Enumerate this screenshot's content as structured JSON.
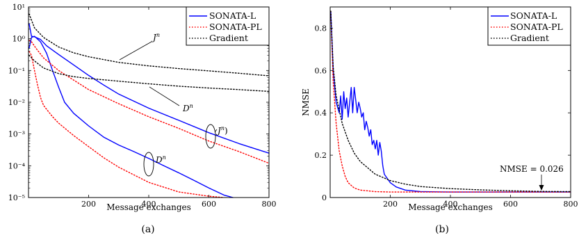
{
  "chart_data": [
    {
      "type": "line",
      "panel": "a",
      "caption": "(a)",
      "xlabel": "Message exchanges",
      "ylabel": "",
      "xlim": [
        0,
        800
      ],
      "ylim": [
        1e-05,
        10
      ],
      "yscale": "log",
      "grid": false,
      "legend_position": "top-right",
      "x_ticks": [
        200,
        400,
        600,
        800
      ],
      "x_tick_labels": [
        "200",
        "400",
        "600",
        "800"
      ],
      "y_ticks": [
        1e-05,
        0.0001,
        0.001,
        0.01,
        0.1,
        1,
        10
      ],
      "y_tick_labels": [
        "10⁻⁵",
        "10⁻⁴",
        "10⁻³",
        "10⁻²",
        "10⁻¹",
        "10⁰",
        "10¹"
      ],
      "series": [
        {
          "name": "SONATA-L",
          "color": "#0000ff",
          "style": "solid",
          "metric": "Jn",
          "x": [
            2,
            10,
            20,
            40,
            60,
            100,
            150,
            200,
            250,
            300,
            400,
            500,
            600,
            700,
            800
          ],
          "y": [
            3,
            1.2,
            1.15,
            0.95,
            0.6,
            0.32,
            0.15,
            0.07,
            0.035,
            0.018,
            0.0065,
            0.0027,
            0.0011,
            0.0005,
            0.00025
          ]
        },
        {
          "name": "SONATA-L",
          "color": "#0000ff",
          "style": "solid",
          "metric": "Dn",
          "x": [
            2,
            10,
            20,
            40,
            60,
            80,
            100,
            120,
            150,
            200,
            250,
            300,
            350,
            400,
            450,
            500,
            550,
            600,
            650,
            680
          ],
          "y": [
            0.5,
            1.1,
            1.2,
            0.8,
            0.35,
            0.1,
            0.03,
            0.01,
            0.0045,
            0.0018,
            0.0008,
            0.00045,
            0.00028,
            0.00017,
            0.0001,
            6e-05,
            3.5e-05,
            2e-05,
            1.2e-05,
            1e-05
          ]
        },
        {
          "name": "SONATA-PL",
          "color": "#ff0000",
          "style": "dotted",
          "metric": "Jn",
          "x": [
            2,
            10,
            25,
            50,
            100,
            150,
            200,
            300,
            400,
            500,
            600,
            700,
            800
          ],
          "y": [
            0.9,
            0.8,
            0.5,
            0.25,
            0.1,
            0.05,
            0.025,
            0.009,
            0.0035,
            0.0015,
            0.0006,
            0.00028,
            0.00012
          ]
        },
        {
          "name": "SONATA-PL",
          "color": "#ff0000",
          "style": "dotted",
          "metric": "Dn",
          "x": [
            2,
            10,
            20,
            30,
            40,
            50,
            60,
            80,
            100,
            150,
            200,
            250,
            300,
            400,
            500,
            600,
            650
          ],
          "y": [
            0.4,
            0.3,
            0.1,
            0.035,
            0.014,
            0.008,
            0.006,
            0.0035,
            0.0022,
            0.0009,
            0.0004,
            0.00018,
            9e-05,
            3e-05,
            1.5e-05,
            1.1e-05,
            1e-05
          ]
        },
        {
          "name": "Gradient",
          "color": "#000000",
          "style": "dotted",
          "metric": "Jn",
          "x": [
            2,
            20,
            50,
            100,
            150,
            200,
            300,
            400,
            500,
            600,
            700,
            800
          ],
          "y": [
            6,
            2.2,
            1.1,
            0.55,
            0.36,
            0.27,
            0.18,
            0.14,
            0.115,
            0.097,
            0.082,
            0.068
          ]
        },
        {
          "name": "Gradient",
          "color": "#000000",
          "style": "dotted",
          "metric": "Dn",
          "x": [
            2,
            20,
            50,
            100,
            150,
            200,
            300,
            400,
            500,
            600,
            700,
            800
          ],
          "y": [
            0.3,
            0.2,
            0.12,
            0.08,
            0.064,
            0.056,
            0.046,
            0.038,
            0.032,
            0.028,
            0.025,
            0.022
          ]
        }
      ],
      "legend": [
        {
          "label": "SONATA-L",
          "color": "#0000ff",
          "style": "solid"
        },
        {
          "label": "SONATA-PL",
          "color": "#ff0000",
          "style": "dotted"
        },
        {
          "label": "Gradient",
          "color": "#000000",
          "style": "dotted"
        }
      ],
      "annotations": [
        {
          "text": "Jn",
          "sub": "n",
          "base": "J"
        },
        {
          "text": "Dn",
          "sub": "n",
          "base": "D"
        },
        {
          "text": "Jn)",
          "sub": "n",
          "base": "J",
          "tail": ")"
        },
        {
          "text": "Dn",
          "sub": "n",
          "base": "D"
        }
      ]
    },
    {
      "type": "line",
      "panel": "b",
      "caption": "(b)",
      "xlabel": "Message exchanges",
      "ylabel": "NMSE",
      "xlim": [
        0,
        800
      ],
      "ylim": [
        0,
        0.9
      ],
      "yscale": "linear",
      "grid": false,
      "legend_position": "top-right",
      "x_ticks": [
        200,
        400,
        600,
        800
      ],
      "x_tick_labels": [
        "200",
        "400",
        "600",
        "800"
      ],
      "y_ticks": [
        0,
        0.2,
        0.4,
        0.6,
        0.8
      ],
      "y_tick_labels": [
        "0",
        "0.2",
        "0.4",
        "0.6",
        "0.8"
      ],
      "series": [
        {
          "name": "SONATA-L",
          "color": "#0000ff",
          "style": "solid",
          "x": [
            2,
            10,
            20,
            30,
            35,
            40,
            45,
            50,
            55,
            60,
            65,
            70,
            75,
            80,
            85,
            90,
            95,
            100,
            105,
            110,
            115,
            120,
            125,
            130,
            135,
            140,
            145,
            150,
            155,
            160,
            165,
            170,
            175,
            180,
            190,
            200,
            220,
            250,
            300,
            400,
            500,
            600,
            700,
            800
          ],
          "y": [
            0.88,
            0.6,
            0.45,
            0.4,
            0.48,
            0.37,
            0.5,
            0.42,
            0.47,
            0.38,
            0.45,
            0.52,
            0.4,
            0.52,
            0.46,
            0.4,
            0.45,
            0.42,
            0.38,
            0.4,
            0.32,
            0.36,
            0.33,
            0.29,
            0.32,
            0.25,
            0.27,
            0.23,
            0.27,
            0.2,
            0.26,
            0.22,
            0.15,
            0.11,
            0.09,
            0.07,
            0.05,
            0.035,
            0.028,
            0.026,
            0.026,
            0.026,
            0.026,
            0.026
          ]
        },
        {
          "name": "SONATA-PL",
          "color": "#ff0000",
          "style": "dotted",
          "x": [
            2,
            10,
            20,
            30,
            40,
            50,
            60,
            80,
            100,
            150,
            200,
            300,
            400,
            600,
            800
          ],
          "y": [
            0.88,
            0.55,
            0.35,
            0.22,
            0.15,
            0.1,
            0.07,
            0.045,
            0.035,
            0.028,
            0.026,
            0.026,
            0.026,
            0.026,
            0.026
          ]
        },
        {
          "name": "Gradient",
          "color": "#000000",
          "style": "dotted",
          "x": [
            2,
            10,
            20,
            40,
            60,
            80,
            100,
            150,
            200,
            250,
            300,
            400,
            500,
            600,
            700,
            800
          ],
          "y": [
            0.88,
            0.62,
            0.48,
            0.35,
            0.27,
            0.21,
            0.17,
            0.11,
            0.08,
            0.063,
            0.052,
            0.042,
            0.036,
            0.032,
            0.029,
            0.028
          ]
        }
      ],
      "legend": [
        {
          "label": "SONATA-L",
          "color": "#0000ff",
          "style": "solid"
        },
        {
          "label": "SONATA-PL",
          "color": "#ff0000",
          "style": "dotted"
        },
        {
          "label": "Gradient",
          "color": "#000000",
          "style": "dotted"
        }
      ],
      "annotations": [
        {
          "text": "NMSE = 0.026"
        }
      ]
    }
  ]
}
